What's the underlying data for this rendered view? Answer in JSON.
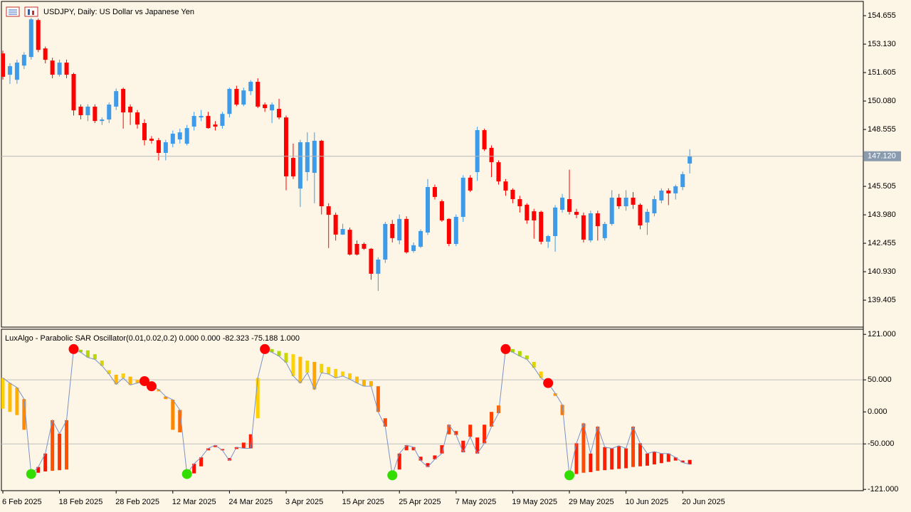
{
  "chart_data": [
    {
      "type": "candlestick",
      "title": "USDJPY, Daily:  US Dollar vs Japanese Yen",
      "categories": [
        "6 Feb 2025",
        null,
        null,
        null,
        null,
        null,
        null,
        null,
        "18 Feb 2025",
        null,
        null,
        null,
        null,
        null,
        null,
        null,
        "28 Feb 2025",
        null,
        null,
        null,
        null,
        null,
        null,
        null,
        "12 Mar 2025",
        null,
        null,
        null,
        null,
        null,
        null,
        null,
        "24 Mar 2025",
        null,
        null,
        null,
        null,
        null,
        null,
        null,
        "3 Apr 2025",
        null,
        null,
        null,
        null,
        null,
        null,
        null,
        "15 Apr 2025",
        null,
        null,
        null,
        null,
        null,
        null,
        null,
        "25 Apr 2025",
        null,
        null,
        null,
        null,
        null,
        null,
        null,
        "7 May 2025",
        null,
        null,
        null,
        null,
        null,
        null,
        null,
        "19 May 2025",
        null,
        null,
        null,
        null,
        null,
        null,
        null,
        "29 May 2025",
        null,
        null,
        null,
        null,
        null,
        null,
        null,
        "10 Jun 2025",
        null,
        null,
        null,
        null,
        null,
        null,
        null,
        "20 Jun 2025",
        null
      ],
      "open": [
        152.63,
        151.49,
        151.22,
        151.98,
        152.44,
        154.42,
        152.9,
        152.25,
        151.49,
        152.14,
        151.53,
        149.78,
        149.32,
        149.78,
        149.01,
        149.09,
        149.78,
        150.73,
        149.78,
        149.47,
        148.9,
        148.06,
        147.98,
        147.3,
        147.79,
        148.02,
        147.79,
        148.71,
        149.2,
        149.28,
        148.82,
        148.75,
        149.39,
        150.73,
        149.89,
        150.61,
        151.11,
        149.89,
        149.58,
        149.66,
        149.2,
        147.03,
        145.39,
        146.27,
        146.23,
        147.95,
        144.44,
        143.98,
        142.92,
        143.18,
        142.42,
        142.42,
        142.16,
        140.82,
        141.58,
        143.49,
        142.61,
        143.76,
        142.04,
        142.27,
        143.03,
        145.47,
        144.71,
        143.76,
        142.42,
        143.87,
        145.97,
        146.27,
        148.52,
        147.57,
        146.8,
        145.77,
        145.32,
        144.82,
        144.52,
        144.17,
        144.14,
        142.54,
        142.84,
        144.25,
        144.82,
        144.14,
        143.95,
        142.61,
        144.06,
        142.73,
        143.49,
        144.9,
        144.44,
        144.9,
        144.52,
        143.57,
        144.06,
        144.75,
        145.28,
        145.13,
        145.47,
        146.73
      ],
      "high": [
        152.78,
        152.1,
        152.3,
        152.7,
        154.54,
        154.5,
        153.0,
        152.4,
        152.3,
        152.3,
        151.6,
        149.9,
        149.9,
        149.9,
        149.2,
        150.0,
        150.75,
        150.8,
        149.9,
        149.6,
        149.1,
        148.2,
        148.1,
        148.0,
        148.5,
        148.6,
        148.8,
        149.5,
        149.6,
        149.5,
        149.0,
        149.5,
        150.8,
        150.9,
        150.8,
        151.2,
        151.3,
        150.0,
        150.0,
        150.2,
        149.3,
        147.8,
        148.0,
        148.4,
        148.4,
        148.0,
        144.6,
        144.1,
        143.5,
        143.3,
        142.6,
        142.5,
        142.2,
        141.7,
        143.6,
        143.7,
        144.0,
        143.9,
        142.5,
        143.2,
        145.9,
        145.6,
        144.8,
        143.8,
        144.0,
        146.1,
        146.1,
        148.7,
        148.6,
        147.7,
        146.9,
        145.9,
        145.4,
        145.0,
        144.6,
        144.3,
        144.2,
        142.9,
        144.5,
        145.1,
        146.4,
        144.3,
        144.1,
        144.2,
        144.2,
        143.6,
        145.3,
        145.1,
        145.3,
        145.2,
        144.6,
        144.3,
        145.0,
        145.4,
        145.4,
        145.6,
        146.3,
        147.5
      ],
      "low": [
        151.23,
        151.0,
        151.0,
        151.8,
        152.3,
        152.7,
        152.1,
        151.3,
        151.4,
        151.3,
        149.3,
        149.1,
        149.0,
        148.9,
        148.8,
        148.9,
        149.6,
        148.6,
        148.8,
        148.6,
        147.7,
        147.8,
        146.9,
        146.9,
        147.6,
        147.8,
        147.7,
        148.5,
        149.0,
        148.6,
        148.5,
        148.6,
        149.2,
        149.8,
        149.8,
        150.4,
        149.7,
        149.5,
        148.9,
        149.1,
        145.3,
        145.9,
        144.4,
        145.8,
        144.6,
        144.0,
        142.2,
        142.6,
        142.9,
        141.8,
        141.8,
        142.1,
        140.5,
        139.9,
        141.4,
        142.5,
        142.4,
        141.9,
        141.95,
        142.2,
        142.9,
        144.8,
        143.6,
        142.3,
        142.3,
        143.6,
        145.2,
        145.8,
        147.4,
        146.0,
        145.6,
        145.0,
        144.6,
        144.1,
        143.5,
        142.7,
        142.4,
        142.2,
        142.0,
        144.1,
        144.0,
        143.8,
        142.5,
        142.5,
        142.6,
        142.6,
        143.4,
        144.3,
        144.2,
        144.3,
        143.2,
        142.9,
        143.9,
        144.6,
        144.5,
        144.8,
        145.3,
        146.2
      ],
      "close": [
        151.38,
        151.95,
        152.14,
        152.56,
        154.46,
        152.82,
        152.29,
        151.49,
        152.14,
        151.49,
        149.58,
        149.32,
        149.78,
        149.01,
        149.09,
        149.89,
        150.61,
        149.47,
        149.47,
        148.82,
        147.98,
        147.95,
        147.3,
        147.87,
        148.33,
        148.4,
        148.63,
        149.28,
        149.28,
        148.63,
        148.71,
        149.39,
        150.73,
        149.89,
        150.65,
        151.11,
        149.78,
        149.7,
        149.89,
        149.2,
        146.04,
        146.04,
        147.87,
        147.87,
        147.95,
        144.44,
        143.98,
        142.92,
        143.22,
        141.85,
        141.85,
        142.16,
        140.82,
        141.58,
        143.49,
        142.73,
        143.76,
        141.97,
        142.35,
        143.11,
        145.47,
        144.94,
        143.68,
        142.42,
        143.87,
        145.97,
        145.28,
        148.52,
        147.49,
        146.8,
        145.77,
        145.28,
        144.82,
        144.44,
        143.68,
        143.68,
        142.54,
        142.84,
        144.37,
        144.9,
        144.14,
        143.98,
        142.65,
        144.06,
        143.37,
        143.49,
        144.9,
        144.44,
        144.9,
        144.52,
        143.41,
        144.14,
        144.82,
        145.28,
        145.13,
        145.51,
        146.16,
        147.12
      ],
      "up_color": "#3d9be9",
      "down_color": "#ff0000",
      "ylim": [
        137.96,
        155.42
      ],
      "yticks": [
        154.655,
        {
          "value": 153.13,
          "label": "153.130"
        },
        151.605,
        {
          "value": 150.08,
          "label": "150.080"
        },
        148.555,
        145.505,
        {
          "value": 143.98,
          "label": "143.980"
        },
        142.455,
        {
          "value": 140.93,
          "label": "140.930"
        },
        139.405
      ],
      "current_price": {
        "value": 147.12,
        "label": "147.120"
      }
    },
    {
      "type": "oscillator",
      "title": "LuxAlgo - Parabolic SAR Oscillator(0.01,0.02,0.2) 0.000 0.000 -82.323 -75.188 1.000",
      "series": [
        {
          "color": "#7b93c9",
          "values": [
            53,
            45,
            38,
            20,
            -97,
            -86,
            -65,
            -13,
            -34,
            -13,
            98,
            93,
            85,
            82,
            72,
            59,
            43,
            53,
            42,
            45,
            48,
            40,
            35,
            24,
            19,
            3,
            -97,
            -81,
            -71,
            -57,
            -52,
            -60,
            -76,
            -55,
            -57,
            -57,
            53,
            98,
            93,
            87,
            77,
            56,
            45,
            61,
            35,
            61,
            59,
            53,
            56,
            51,
            45,
            40,
            40,
            0,
            -23,
            -99,
            -65,
            -52,
            -55,
            -76,
            -86,
            -74,
            -65,
            -20,
            -36,
            -63,
            -39,
            -65,
            -49,
            -23,
            -2,
            98,
            93,
            87,
            82,
            69,
            53,
            45,
            29,
            11,
            -99,
            -49,
            -18,
            -65,
            -23,
            -55,
            -57,
            -53,
            -57,
            -23,
            -49,
            -65,
            -62,
            -65,
            -65,
            -71,
            -79,
            -82
          ]
        },
        {
          "values": [
            5,
            0,
            -5,
            -28,
            -97,
            -95,
            -93,
            -92,
            -91,
            -90,
            98,
            97,
            96,
            90,
            80,
            65,
            58,
            60,
            55,
            50,
            48,
            40,
            32,
            20,
            -28,
            -32,
            -97,
            -96,
            -85,
            -60,
            -55,
            -58,
            -72,
            -58,
            -48,
            -35,
            -10,
            98,
            98,
            95,
            92,
            90,
            86,
            80,
            78,
            75,
            70,
            67,
            63,
            60,
            55,
            50,
            48,
            40,
            -10,
            -99,
            -90,
            -60,
            -60,
            -70,
            -80,
            -68,
            -52,
            -35,
            -30,
            -45,
            -20,
            -40,
            -20,
            0,
            10,
            98,
            98,
            95,
            88,
            78,
            63,
            45,
            25,
            -5,
            -99,
            -97,
            -95,
            -94,
            -92,
            -91,
            -90,
            -89,
            -88,
            -86,
            -85,
            -84,
            -82,
            -80,
            -78,
            -76,
            -76,
            -75
          ]
        }
      ],
      "low_color": "#ff0000",
      "mid_color": "#ffd400",
      "high_color": "#33dd00",
      "ylim": [
        -123,
        129
      ],
      "yticks": [
        {
          "value": 121,
          "label": "121.000"
        },
        {
          "value": 50,
          "label": "50.000"
        },
        {
          "value": 0,
          "label": "0.000"
        },
        {
          "value": -50,
          "label": "-50.000"
        },
        {
          "value": -121,
          "label": "-121.000"
        }
      ],
      "levels": [
        50,
        -50
      ]
    }
  ]
}
